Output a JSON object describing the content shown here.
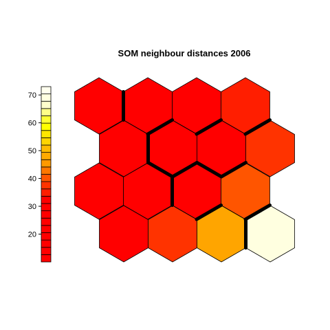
{
  "chart_data": {
    "type": "heatmap",
    "title": "SOM neighbour distances 2006",
    "colorbar": {
      "ticks": [
        20,
        30,
        40,
        50,
        60,
        70
      ],
      "range": [
        10,
        73
      ],
      "colors": [
        "#FF0000",
        "#FF0000",
        "#FF0000",
        "#FF0000",
        "#FF0000",
        "#FF0000",
        "#FF0000",
        "#FF0000",
        "#FF0000",
        "#FF1E00",
        "#FF3300",
        "#FF5500",
        "#FF7700",
        "#FF9900",
        "#FFAA00",
        "#FFBB00",
        "#FFD500",
        "#FFE600",
        "#FFFF00",
        "#FFFF33",
        "#FFFF88",
        "#FFFFCC",
        "#FFFFE0",
        "#FFFFEE"
      ]
    },
    "grid": {
      "rows": 4,
      "cols": 4,
      "topology": "hexagonal"
    },
    "cells": [
      {
        "row": 1,
        "col": 1,
        "value": 12,
        "color": "#FF0000"
      },
      {
        "row": 1,
        "col": 2,
        "value": 12,
        "color": "#FF0000"
      },
      {
        "row": 1,
        "col": 3,
        "value": 12,
        "color": "#FF0000"
      },
      {
        "row": 1,
        "col": 4,
        "value": 14,
        "color": "#FF1E00"
      },
      {
        "row": 2,
        "col": 1,
        "value": 12,
        "color": "#FF0000"
      },
      {
        "row": 2,
        "col": 2,
        "value": 12,
        "color": "#FF0000"
      },
      {
        "row": 2,
        "col": 3,
        "value": 12,
        "color": "#FF0000"
      },
      {
        "row": 2,
        "col": 4,
        "value": 18,
        "color": "#FF3300"
      },
      {
        "row": 3,
        "col": 1,
        "value": 12,
        "color": "#FF0000"
      },
      {
        "row": 3,
        "col": 2,
        "value": 12,
        "color": "#FF0000"
      },
      {
        "row": 3,
        "col": 3,
        "value": 12,
        "color": "#FF0000"
      },
      {
        "row": 3,
        "col": 4,
        "value": 24,
        "color": "#FF5500"
      },
      {
        "row": 4,
        "col": 1,
        "value": 12,
        "color": "#FF0000"
      },
      {
        "row": 4,
        "col": 2,
        "value": 20,
        "color": "#FF3300"
      },
      {
        "row": 4,
        "col": 3,
        "value": 42,
        "color": "#FFA500"
      },
      {
        "row": 4,
        "col": 4,
        "value": 72,
        "color": "#FFFFE0"
      }
    ],
    "boundaries": [
      {
        "between": [
          [
            1,
            1
          ],
          [
            1,
            2
          ]
        ]
      },
      {
        "between": [
          [
            1,
            2
          ],
          [
            2,
            2
          ]
        ]
      },
      {
        "between": [
          [
            1,
            3
          ],
          [
            2,
            3
          ]
        ]
      },
      {
        "between": [
          [
            1,
            3
          ],
          [
            2,
            4
          ]
        ]
      },
      {
        "between": [
          [
            1,
            4
          ],
          [
            2,
            4
          ]
        ]
      },
      {
        "between": [
          [
            2,
            1
          ],
          [
            2,
            2
          ]
        ]
      },
      {
        "between": [
          [
            2,
            2
          ],
          [
            3,
            2
          ]
        ]
      },
      {
        "between": [
          [
            2,
            2
          ],
          [
            3,
            3
          ]
        ]
      },
      {
        "between": [
          [
            2,
            3
          ],
          [
            3,
            3
          ]
        ]
      },
      {
        "between": [
          [
            2,
            3
          ],
          [
            3,
            4
          ]
        ]
      },
      {
        "between": [
          [
            3,
            2
          ],
          [
            3,
            3
          ]
        ]
      },
      {
        "between": [
          [
            3,
            2
          ],
          [
            4,
            3
          ]
        ]
      },
      {
        "between": [
          [
            3,
            3
          ],
          [
            4,
            3
          ]
        ]
      },
      {
        "between": [
          [
            3,
            3
          ],
          [
            4,
            4
          ]
        ]
      },
      {
        "between": [
          [
            3,
            4
          ],
          [
            4,
            4
          ]
        ]
      },
      {
        "between": [
          [
            4,
            3
          ],
          [
            4,
            4
          ]
        ]
      },
      {
        "between": [
          [
            3,
            1
          ],
          [
            4,
            2
          ]
        ]
      }
    ]
  }
}
